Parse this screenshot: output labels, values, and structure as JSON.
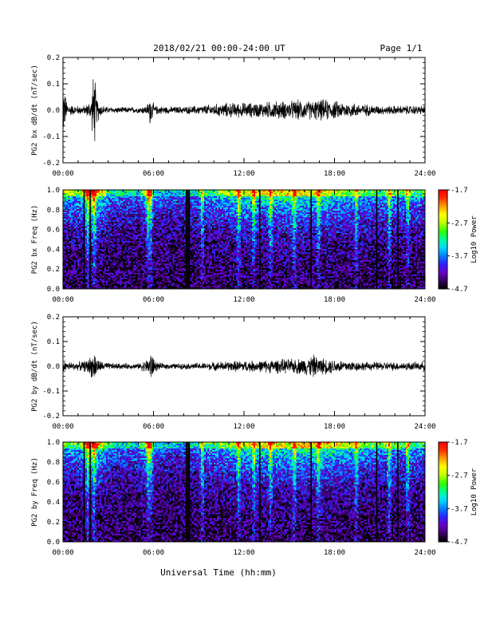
{
  "header": {
    "date_range": "2018/02/21  00:00-24:00 UT",
    "page": "Page 1/1"
  },
  "colors": {
    "trace": "#000000",
    "colormap": [
      "#000000",
      "#3a0060",
      "#6a00c8",
      "#2b20ff",
      "#0080ff",
      "#00d8ff",
      "#00ff90",
      "#30ff00",
      "#c0ff00",
      "#ffff00",
      "#ffa000",
      "#ff3000",
      "#ff0000"
    ]
  },
  "chart_data": [
    {
      "type": "line",
      "ylabel": "PG2 bx dB/dt (nT/sec)",
      "ylim": [
        -0.2,
        0.2
      ],
      "yticks": [
        "0.2",
        "0.1",
        "0.0",
        "-0.1",
        "-0.2"
      ],
      "xlim": [
        0,
        24
      ],
      "xticks": [
        "00:00",
        "06:00",
        "12:00",
        "18:00",
        "24:00"
      ],
      "series": [
        {
          "x": [
            0,
            0.2,
            0.4,
            0.8,
            1.5,
            1.9,
            2.0,
            2.1,
            2.2,
            2.5,
            3,
            4,
            5,
            5.5,
            5.7,
            5.8,
            5.9,
            6.1,
            7,
            8,
            9,
            10,
            11,
            12,
            13,
            14,
            15,
            15.8,
            16,
            17,
            17.5,
            18,
            19,
            20,
            21,
            22,
            23,
            24
          ],
          "amplitude": [
            0.09,
            0.04,
            0.02,
            0.015,
            0.015,
            0.04,
            0.12,
            0.12,
            0.05,
            0.02,
            0.01,
            0.01,
            0.01,
            0.015,
            0.03,
            0.06,
            0.03,
            0.015,
            0.012,
            0.012,
            0.015,
            0.02,
            0.025,
            0.025,
            0.025,
            0.03,
            0.03,
            0.035,
            0.03,
            0.035,
            0.035,
            0.03,
            0.025,
            0.02,
            0.015,
            0.015,
            0.015,
            0.015
          ]
        }
      ]
    },
    {
      "type": "heatmap",
      "ylabel": "PG2 bx Freq (Hz)",
      "ylim": [
        0,
        1.0
      ],
      "yticks": [
        "1.0",
        "0.8",
        "0.6",
        "0.4",
        "0.2",
        "0.0"
      ],
      "xlim": [
        0,
        24
      ],
      "xticks": [
        "00:00",
        "06:00",
        "12:00",
        "18:00",
        "24:00"
      ],
      "colorbar": {
        "label": "Log10 Power",
        "range": [
          -4.7,
          -1.7
        ],
        "ticks": [
          "-1.7",
          "-2.7",
          "-3.7",
          "-4.7"
        ]
      },
      "vertical_lines_hours": [
        1.4,
        1.8,
        8.2,
        8.35,
        13.05,
        16.45,
        20.8,
        22.2
      ],
      "bright_columns_hours": [
        1.6,
        2.0,
        5.6,
        5.75,
        9.2,
        11.6,
        12.6,
        13.7,
        15.3,
        16.9,
        19.4,
        21.6,
        22.8
      ],
      "activity_profile": {
        "x": [
          0,
          1,
          1.5,
          2,
          3,
          4,
          5,
          5.7,
          6,
          7,
          8,
          9,
          10,
          11,
          12,
          13,
          14,
          15,
          16,
          17,
          18,
          19,
          20,
          21,
          22,
          23,
          24
        ],
        "level": [
          0.55,
          0.5,
          0.75,
          0.8,
          0.4,
          0.35,
          0.35,
          0.7,
          0.35,
          0.3,
          0.3,
          0.4,
          0.45,
          0.55,
          0.6,
          0.6,
          0.6,
          0.65,
          0.6,
          0.6,
          0.55,
          0.5,
          0.45,
          0.45,
          0.45,
          0.45,
          0.45
        ]
      }
    },
    {
      "type": "line",
      "ylabel": "PG2 by dB/dt (nT/sec)",
      "ylim": [
        -0.2,
        0.2
      ],
      "yticks": [
        "0.2",
        "0.1",
        "0.0",
        "-0.1",
        "-0.2"
      ],
      "xlim": [
        0,
        24
      ],
      "xticks": [
        "00:00",
        "06:00",
        "12:00",
        "18:00",
        "24:00"
      ],
      "series": [
        {
          "x": [
            0,
            0.5,
            1,
            1.5,
            1.9,
            2.1,
            2.4,
            3,
            4,
            5,
            5.6,
            5.8,
            6.0,
            6.3,
            7,
            8,
            9,
            10,
            11,
            12,
            13,
            14,
            15,
            16,
            16.3,
            16.6,
            17,
            18,
            19,
            20,
            21,
            22,
            23,
            24
          ],
          "amplitude": [
            0.02,
            0.015,
            0.015,
            0.02,
            0.04,
            0.05,
            0.02,
            0.012,
            0.01,
            0.01,
            0.025,
            0.06,
            0.03,
            0.012,
            0.01,
            0.01,
            0.012,
            0.015,
            0.018,
            0.02,
            0.02,
            0.025,
            0.025,
            0.03,
            0.035,
            0.04,
            0.03,
            0.025,
            0.02,
            0.015,
            0.015,
            0.015,
            0.015,
            0.015
          ]
        }
      ]
    },
    {
      "type": "heatmap",
      "ylabel": "PG2 by Freq (Hz)",
      "ylim": [
        0,
        1.0
      ],
      "yticks": [
        "1.0",
        "0.8",
        "0.6",
        "0.4",
        "0.2",
        "0.0"
      ],
      "xlim": [
        0,
        24
      ],
      "xticks": [
        "00:00",
        "06:00",
        "12:00",
        "18:00",
        "24:00"
      ],
      "xlabel": "Universal Time (hh:mm)",
      "colorbar": {
        "label": "Log10 Power",
        "range": [
          -4.7,
          -1.7
        ],
        "ticks": [
          "-1.7",
          "-2.7",
          "-3.7",
          "-4.7"
        ]
      },
      "vertical_lines_hours": [
        1.4,
        1.8,
        8.2,
        8.35,
        13.05,
        16.45,
        20.8,
        22.2
      ],
      "bright_columns_hours": [
        1.6,
        2.0,
        5.6,
        5.75,
        9.2,
        11.6,
        12.6,
        13.7,
        15.3,
        16.9,
        19.4,
        21.6,
        22.8
      ],
      "activity_profile": {
        "x": [
          0,
          1,
          1.5,
          2,
          3,
          4,
          5,
          5.7,
          6,
          7,
          8,
          9,
          10,
          11,
          12,
          13,
          14,
          15,
          16,
          17,
          18,
          19,
          20,
          21,
          22,
          23,
          24
        ],
        "level": [
          0.5,
          0.45,
          0.7,
          0.75,
          0.4,
          0.35,
          0.35,
          0.65,
          0.35,
          0.3,
          0.3,
          0.4,
          0.45,
          0.5,
          0.55,
          0.6,
          0.6,
          0.6,
          0.65,
          0.65,
          0.6,
          0.55,
          0.45,
          0.45,
          0.45,
          0.45,
          0.45
        ]
      }
    }
  ]
}
